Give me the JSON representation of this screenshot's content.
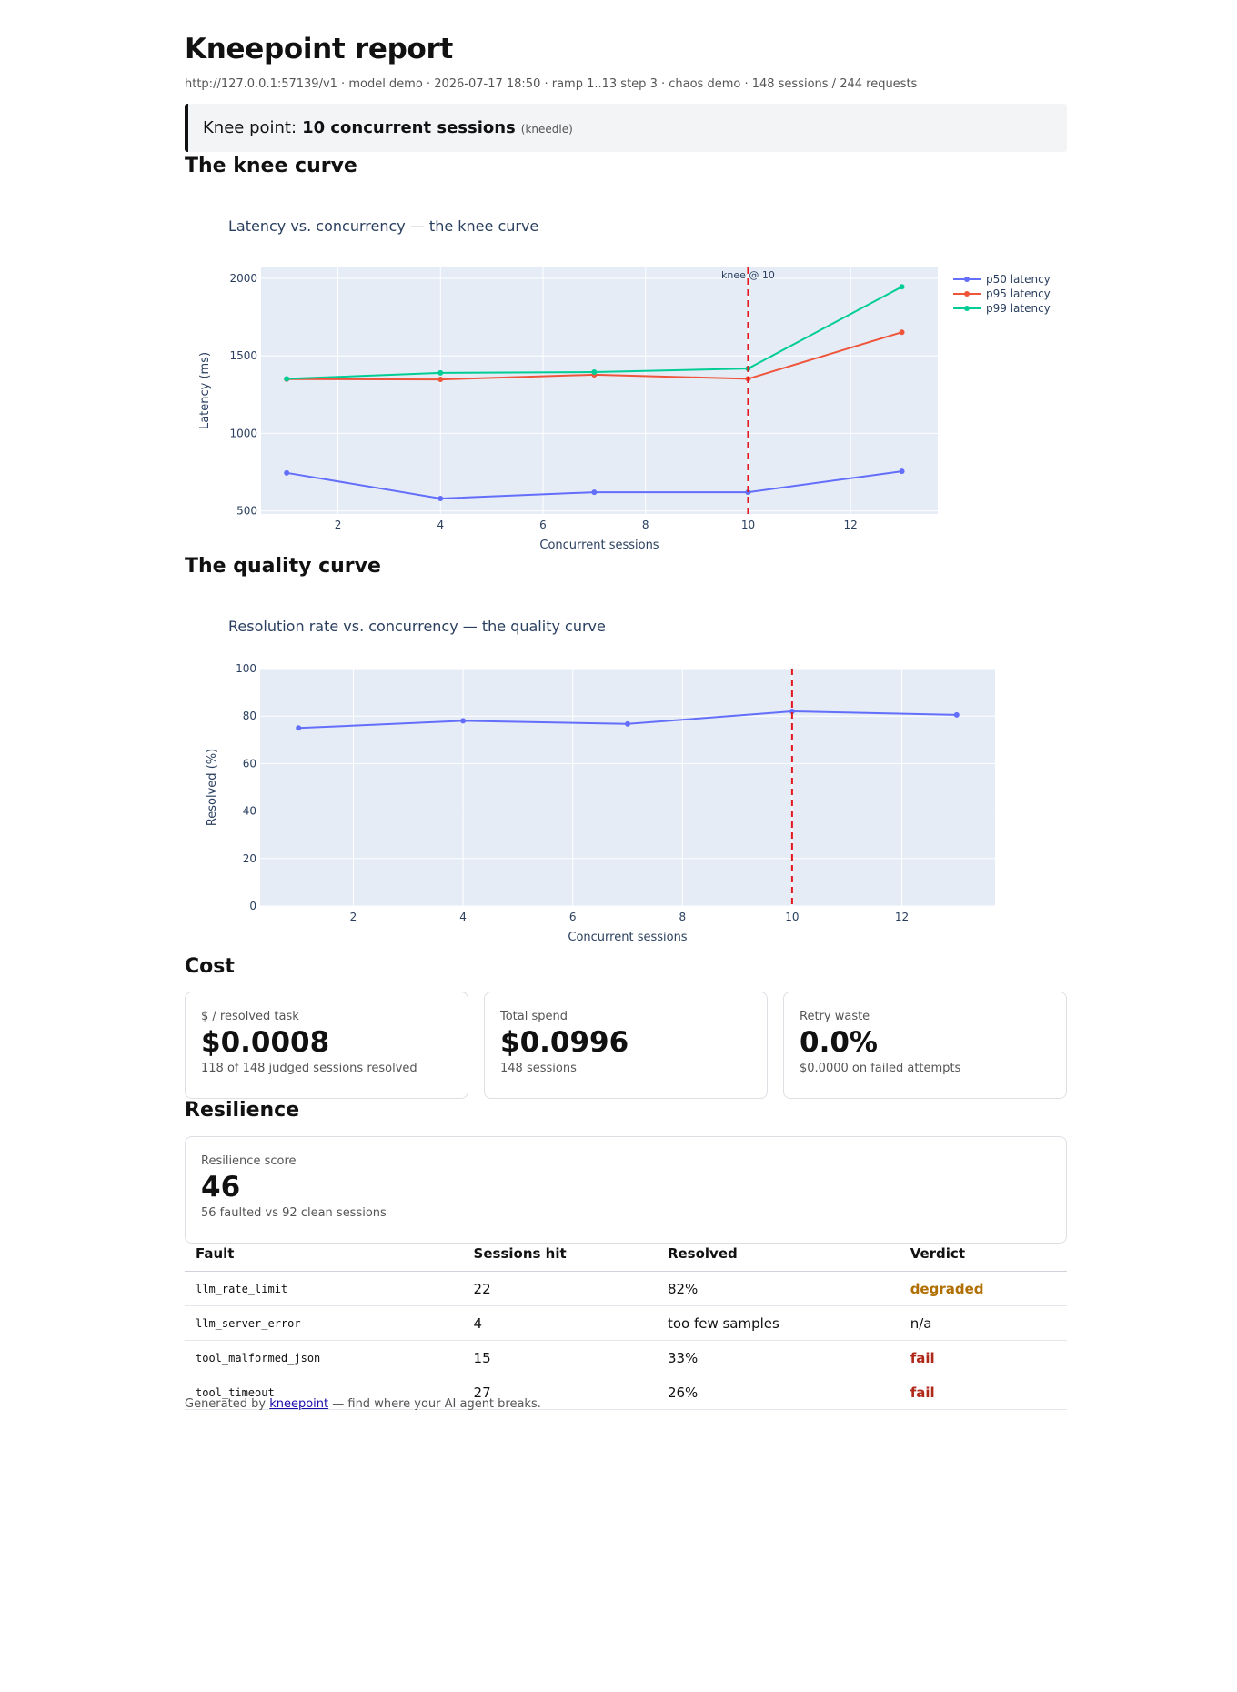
{
  "report": {
    "title": "Kneepoint report",
    "meta": "http://127.0.0.1:57139/v1 · model demo · 2026-07-17 18:50 · ramp 1..13 step 3 · chaos demo · 148 sessions / 244 requests",
    "knee_prefix": "Knee point:",
    "knee_value": "10 concurrent sessions",
    "knee_method": "(kneedle)"
  },
  "sections": {
    "knee": "The knee curve",
    "quality": "The quality curve",
    "cost": "Cost",
    "resilience": "Resilience"
  },
  "chart_data": [
    {
      "type": "line",
      "title": "Latency vs. concurrency — the knee curve",
      "xlabel": "Concurrent sessions",
      "ylabel": "Latency (ms)",
      "x": [
        1,
        4,
        7,
        10,
        13
      ],
      "xlim": [
        0.5,
        13.7
      ],
      "ylim": [
        480,
        2070
      ],
      "xticks": [
        2,
        4,
        6,
        8,
        10,
        12
      ],
      "yticks": [
        500,
        1000,
        1500,
        2000
      ],
      "grid": true,
      "legend_position": "right",
      "series": [
        {
          "name": "p50 latency",
          "color": "#636efa",
          "values": [
            745,
            580,
            620,
            620,
            755
          ]
        },
        {
          "name": "p95 latency",
          "color": "#ef553b",
          "values": [
            1350,
            1348,
            1378,
            1352,
            1652
          ]
        },
        {
          "name": "p99 latency",
          "color": "#00cc96",
          "values": [
            1352,
            1390,
            1395,
            1418,
            1945
          ]
        }
      ],
      "vline": {
        "x": 10,
        "color": "#e3171e",
        "label": "knee @ 10"
      }
    },
    {
      "type": "line",
      "title": "Resolution rate vs. concurrency — the quality curve",
      "xlabel": "Concurrent sessions",
      "ylabel": "Resolved (%)",
      "x": [
        1,
        4,
        7,
        10,
        13
      ],
      "xlim": [
        0.3,
        13.7
      ],
      "ylim": [
        0,
        100
      ],
      "xticks": [
        2,
        4,
        6,
        8,
        10,
        12
      ],
      "yticks": [
        0,
        20,
        40,
        60,
        80,
        100
      ],
      "grid": true,
      "series": [
        {
          "color": "#636efa",
          "values": [
            75,
            78,
            76.7,
            82,
            80.5
          ]
        }
      ],
      "vline": {
        "x": 10,
        "color": "#e3171e",
        "label": ""
      }
    }
  ],
  "cost": {
    "cards": [
      {
        "label": "$ / resolved task",
        "value": "$0.0008",
        "sub": "118 of 148 judged sessions resolved"
      },
      {
        "label": "Total spend",
        "value": "$0.0996",
        "sub": "148 sessions"
      },
      {
        "label": "Retry waste",
        "value": "0.0%",
        "sub": "$0.0000 on failed attempts"
      }
    ]
  },
  "resilience": {
    "label": "Resilience score",
    "value": "46",
    "sub": "56 faulted vs 92 clean sessions",
    "headers": [
      "Fault",
      "Sessions hit",
      "Resolved",
      "Verdict"
    ],
    "rows": [
      {
        "fault": "llm_rate_limit",
        "hits": "22",
        "resolved": "82%",
        "verdict": "degraded",
        "color": "#b06f00"
      },
      {
        "fault": "llm_server_error",
        "hits": "4",
        "resolved": "too few samples",
        "verdict": "n/a",
        "color": "#111111"
      },
      {
        "fault": "tool_malformed_json",
        "hits": "15",
        "resolved": "33%",
        "verdict": "fail",
        "color": "#b0281a"
      },
      {
        "fault": "tool_timeout",
        "hits": "27",
        "resolved": "26%",
        "verdict": "fail",
        "color": "#b0281a"
      }
    ]
  },
  "footer": {
    "prefix": "Generated by",
    "link": "kneepoint",
    "suffix": "— find where your AI agent breaks."
  }
}
